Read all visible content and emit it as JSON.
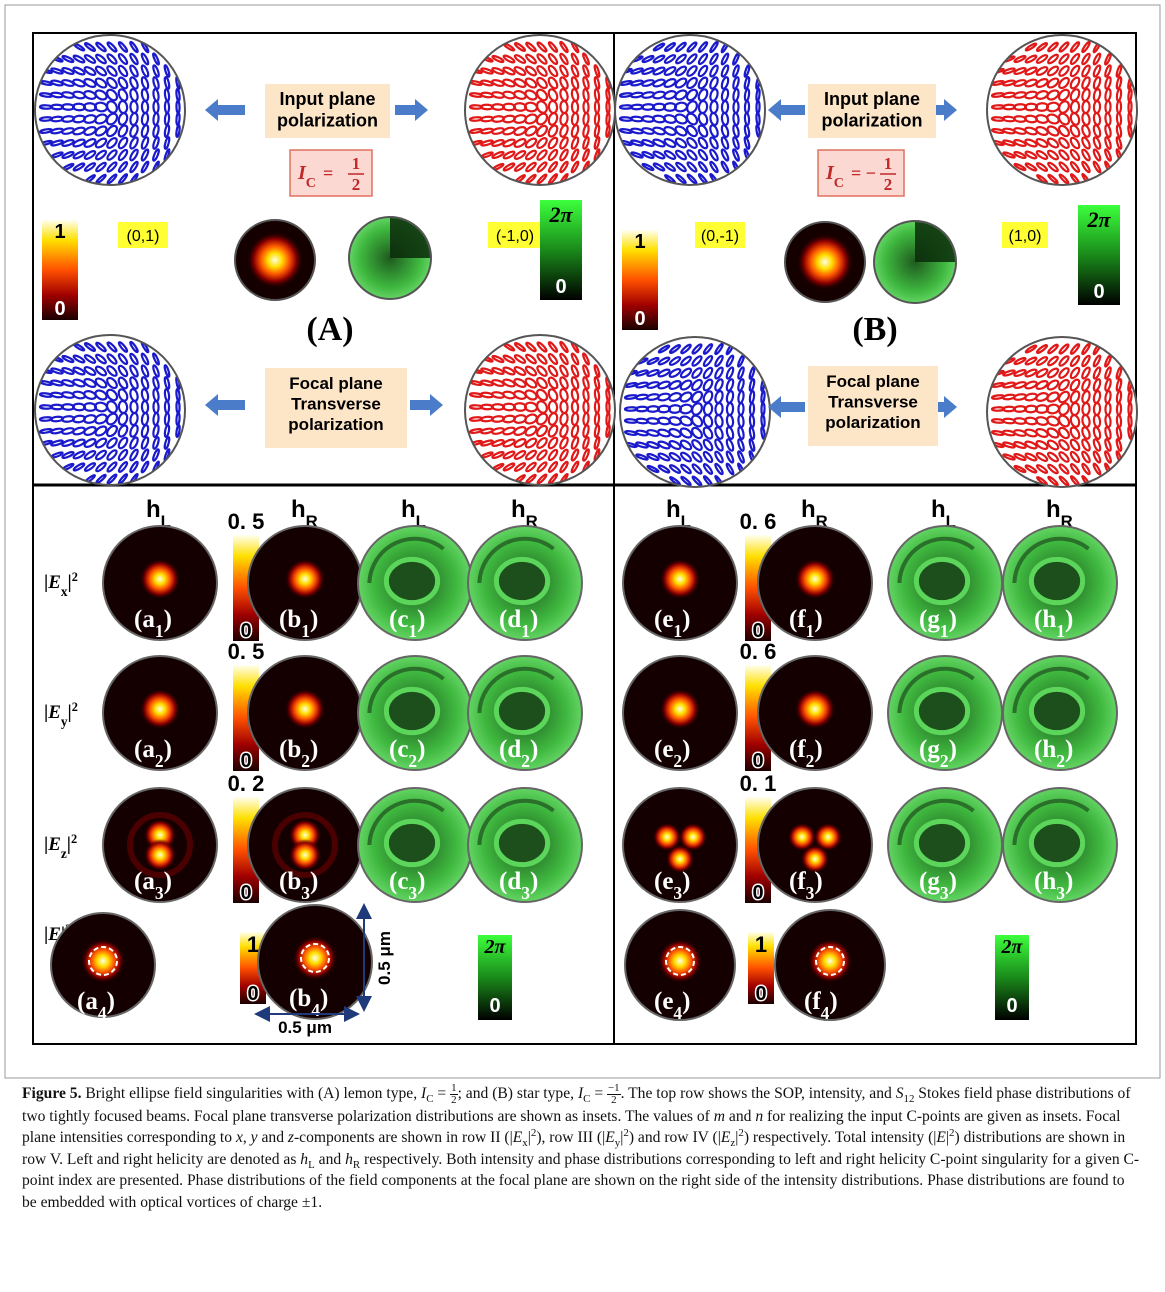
{
  "panels": [
    {
      "label": "(A)",
      "input_label": [
        "Input plane",
        "polarization"
      ],
      "index": {
        "symbol": "I",
        "sub": "C",
        "eq": "=",
        "num": "1",
        "den": "2"
      },
      "left_mn": "(0,1)",
      "right_mn": "(-1,0)",
      "intensity_bar": [
        "1",
        "0"
      ],
      "phase_bar": [
        "2π",
        "0"
      ],
      "focal_label": [
        "Focal plane",
        "Transverse",
        "polarization"
      ]
    },
    {
      "label": "(B)",
      "input_label": [
        "Input plane",
        "polarization"
      ],
      "index": {
        "symbol": "I",
        "sub": "C",
        "eq": "= −",
        "num": "1",
        "den": "2"
      },
      "left_mn": "(0,-1)",
      "right_mn": "(1,0)",
      "intensity_bar": [
        "1",
        "0"
      ],
      "phase_bar": [
        "2π",
        "0"
      ],
      "focal_label": [
        "Focal plane",
        "Transverse",
        "polarization"
      ]
    }
  ],
  "grids": [
    {
      "columns": [
        {
          "h": "h",
          "sub": "L"
        },
        {
          "h": "h",
          "sub": "R"
        },
        {
          "h": "h",
          "sub": "L"
        },
        {
          "h": "h",
          "sub": "R"
        }
      ],
      "rows": [
        {
          "label": {
            "open": "|",
            "var": "E",
            "sub": "x",
            "close": "|",
            "sup": "2"
          },
          "bar": [
            "0. 5",
            "0"
          ],
          "panels": [
            {
              "pre": "(a",
              "sub": "1",
              "post": ")"
            },
            {
              "pre": "(b",
              "sub": "1",
              "post": ")"
            },
            {
              "pre": "(c",
              "sub": "1",
              "post": ")"
            },
            {
              "pre": "(d",
              "sub": "1",
              "post": ")"
            }
          ]
        },
        {
          "label": {
            "open": "|",
            "var": "E",
            "sub": "y",
            "close": "|",
            "sup": "2"
          },
          "bar": [
            "0. 5",
            "0"
          ],
          "panels": [
            {
              "pre": "(a",
              "sub": "2",
              "post": ")"
            },
            {
              "pre": "(b",
              "sub": "2",
              "post": ")"
            },
            {
              "pre": "(c",
              "sub": "2",
              "post": ")"
            },
            {
              "pre": "(d",
              "sub": "2",
              "post": ")"
            }
          ]
        },
        {
          "label": {
            "open": "|",
            "var": "E",
            "sub": "z",
            "close": "|",
            "sup": "2"
          },
          "bar": [
            "0. 2",
            "0"
          ],
          "panels": [
            {
              "pre": "(a",
              "sub": "3",
              "post": ")"
            },
            {
              "pre": "(b",
              "sub": "3",
              "post": ")"
            },
            {
              "pre": "(c",
              "sub": "3",
              "post": ")"
            },
            {
              "pre": "(d",
              "sub": "3",
              "post": ")"
            }
          ]
        },
        {
          "label": {
            "open": "|",
            "var": "E",
            "close": "|",
            "sup": "2"
          },
          "bar": [
            "1",
            "0"
          ],
          "panels": [
            {
              "pre": "(a",
              "sub": "4",
              "post": ")"
            },
            {
              "pre": "(b",
              "sub": "4",
              "post": ")"
            }
          ]
        }
      ],
      "phase_bar": [
        "2π",
        "0"
      ],
      "scale": [
        "0.5 μm",
        "0.5 μm"
      ]
    },
    {
      "columns": [
        {
          "h": "h",
          "sub": "L"
        },
        {
          "h": "h",
          "sub": "R"
        },
        {
          "h": "h",
          "sub": "L"
        },
        {
          "h": "h",
          "sub": "R"
        }
      ],
      "rows": [
        {
          "bar": [
            "0. 6",
            "0"
          ],
          "panels": [
            {
              "pre": "(e",
              "sub": "1",
              "post": ")"
            },
            {
              "pre": "(f",
              "sub": "1",
              "post": ")"
            },
            {
              "pre": "(g",
              "sub": "1",
              "post": ")"
            },
            {
              "pre": "(h",
              "sub": "1",
              "post": ")"
            }
          ]
        },
        {
          "bar": [
            "0. 6",
            "0"
          ],
          "panels": [
            {
              "pre": "(e",
              "sub": "2",
              "post": ")"
            },
            {
              "pre": "(f",
              "sub": "2",
              "post": ")"
            },
            {
              "pre": "(g",
              "sub": "2",
              "post": ")"
            },
            {
              "pre": "(h",
              "sub": "2",
              "post": ")"
            }
          ]
        },
        {
          "bar": [
            "0. 1",
            "0"
          ],
          "panels": [
            {
              "pre": "(e",
              "sub": "3",
              "post": ")"
            },
            {
              "pre": "(f",
              "sub": "3",
              "post": ")"
            },
            {
              "pre": "(g",
              "sub": "3",
              "post": ")"
            },
            {
              "pre": "(h",
              "sub": "3",
              "post": ")"
            }
          ]
        },
        {
          "bar": [
            "1",
            "0"
          ],
          "panels": [
            {
              "pre": "(e",
              "sub": "4",
              "post": ")"
            },
            {
              "pre": "(f",
              "sub": "4",
              "post": ")"
            }
          ]
        }
      ],
      "phase_bar": [
        "2π",
        "0"
      ]
    }
  ],
  "caption": [
    "Figure 5.",
    " Bright ellipse field singularities with (A) lemon type, ",
    "I",
    "C",
    " = ",
    "1",
    "2",
    "; and (B) star type, ",
    "I",
    "C",
    " = ",
    "−1",
    "2",
    ". The top row shows the SOP, intensity, and ",
    "S",
    "12",
    " Stokes field phase distributions of two tightly focused beams. Focal plane transverse polarization distributions are shown as insets. The values of ",
    "m",
    " and ",
    "n",
    " for realizing the input C-points are given as insets. Focal plane intensities corresponding to ",
    "x",
    ", ",
    "y",
    " and ",
    "z",
    "-components are shown in row II (|",
    "E",
    "x",
    "|",
    "2",
    "), row III (|",
    "E",
    "y",
    "|",
    "2",
    ") and row IV (|",
    "E",
    "z",
    "|",
    "2",
    ") respectively. Total intensity (|",
    "E",
    "|",
    "2",
    ") distributions are shown in row V. Left and right helicity are denoted as ",
    "h",
    "L",
    " and ",
    "h",
    "R",
    " respectively. Both intensity and phase distributions corresponding to left and right helicity C-point singularity for a given C-point index are presented. Phase distributions of the field components at the focal plane are shown on the right side of the intensity distributions. Phase distributions are found to be embedded with optical vortices of charge ",
    "±1."
  ]
}
